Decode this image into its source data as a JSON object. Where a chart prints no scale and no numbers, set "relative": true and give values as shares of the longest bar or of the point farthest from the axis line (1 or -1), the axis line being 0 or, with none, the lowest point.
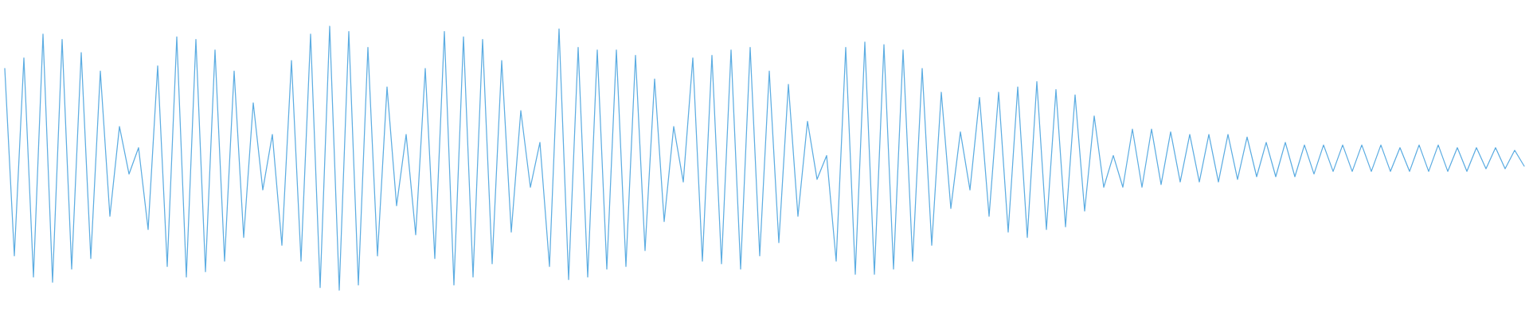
{
  "chart_data": {
    "type": "line",
    "relative": true,
    "categories": [
      null,
      null,
      null,
      null,
      null,
      null,
      null,
      null,
      null,
      null,
      null,
      null,
      null,
      null,
      null,
      null,
      null,
      null,
      null,
      null,
      null,
      null,
      null,
      null,
      null,
      null,
      null,
      null,
      null,
      null,
      null,
      null,
      null,
      null,
      null,
      null,
      null,
      null,
      null,
      null,
      null,
      null,
      null,
      null,
      null,
      null,
      null,
      null,
      null,
      null,
      null,
      null,
      null,
      null,
      null,
      null,
      null,
      null,
      null,
      null,
      null,
      null,
      null,
      null,
      null,
      null,
      null,
      null,
      null,
      null,
      null,
      null,
      null,
      null,
      null,
      null,
      null,
      null,
      null,
      null,
      null,
      null,
      null,
      null,
      null,
      null,
      null,
      null,
      null,
      null,
      null,
      null,
      null,
      null,
      null,
      null,
      null,
      null,
      null,
      null,
      null,
      null,
      null,
      null,
      null,
      null,
      null,
      null,
      null,
      null,
      null,
      null,
      null,
      null,
      null,
      null,
      null,
      null,
      null,
      null,
      null,
      null,
      null,
      null,
      null,
      null,
      null,
      null,
      null,
      null,
      null,
      null,
      null,
      null,
      null,
      null,
      null,
      null,
      null,
      null,
      null,
      null,
      null,
      null,
      null,
      null,
      null,
      null,
      null,
      null,
      null,
      null,
      null,
      null,
      null,
      null,
      null,
      null,
      null,
      null
    ],
    "series": [
      {
        "color": "#5dade2",
        "values": [
          0.84,
          0.13,
          0.88,
          0.05,
          0.97,
          0.03,
          0.95,
          0.08,
          0.9,
          0.12,
          0.83,
          0.28,
          0.62,
          0.44,
          0.54,
          0.23,
          0.85,
          0.09,
          0.96,
          0.05,
          0.95,
          0.07,
          0.91,
          0.11,
          0.83,
          0.2,
          0.71,
          0.38,
          0.59,
          0.17,
          0.87,
          0.11,
          0.97,
          0.01,
          1.0,
          0.0,
          0.98,
          0.02,
          0.92,
          0.13,
          0.77,
          0.32,
          0.59,
          0.21,
          0.84,
          0.12,
          0.98,
          0.02,
          0.96,
          0.05,
          0.95,
          0.1,
          0.87,
          0.22,
          0.68,
          0.39,
          0.56,
          0.09,
          0.99,
          0.04,
          0.92,
          0.05,
          0.91,
          0.08,
          0.91,
          0.09,
          0.89,
          0.15,
          0.8,
          0.26,
          0.62,
          0.41,
          0.88,
          0.11,
          0.89,
          0.1,
          0.91,
          0.08,
          0.92,
          0.13,
          0.83,
          0.18,
          0.78,
          0.28,
          0.64,
          0.42,
          0.51,
          0.11,
          0.92,
          0.06,
          0.94,
          0.06,
          0.93,
          0.08,
          0.91,
          0.11,
          0.84,
          0.17,
          0.75,
          0.31,
          0.6,
          0.38,
          0.73,
          0.28,
          0.75,
          0.22,
          0.77,
          0.2,
          0.79,
          0.23,
          0.76,
          0.24,
          0.74,
          0.3,
          0.66,
          0.39,
          0.51,
          0.39,
          0.61,
          0.39,
          0.61,
          0.4,
          0.6,
          0.41,
          0.59,
          0.41,
          0.59,
          0.41,
          0.59,
          0.42,
          0.58,
          0.43,
          0.56,
          0.43,
          0.56,
          0.43,
          0.55,
          0.44,
          0.55,
          0.45,
          0.55,
          0.45,
          0.55,
          0.45,
          0.55,
          0.45,
          0.54,
          0.45,
          0.55,
          0.45,
          0.55,
          0.45,
          0.54,
          0.45,
          0.54,
          0.46,
          0.54,
          0.46,
          0.53,
          0.47
        ]
      }
    ]
  }
}
